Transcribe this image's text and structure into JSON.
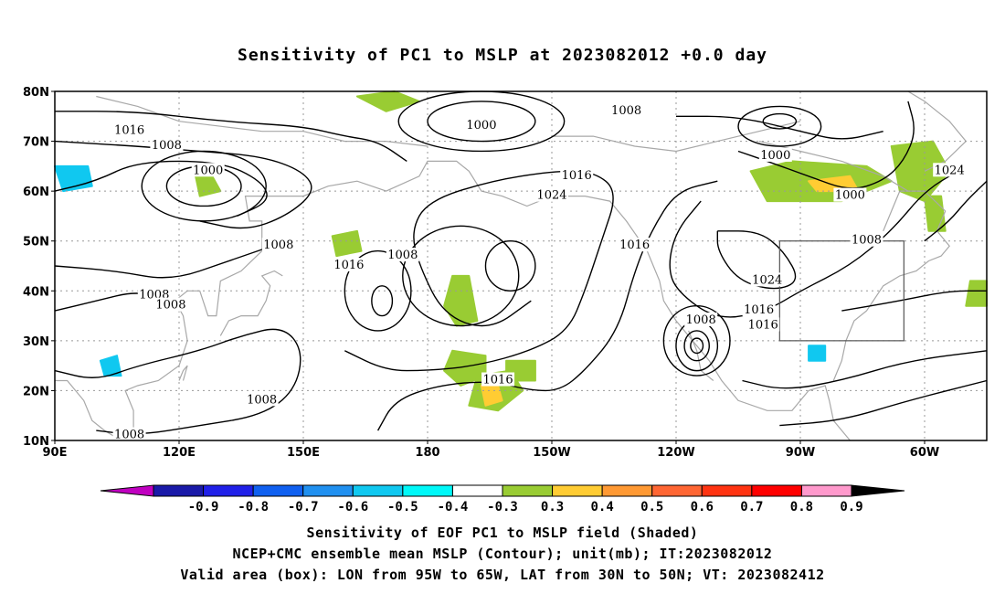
{
  "title": "Sensitivity of PC1 to MSLP at 2023082012 +0.0 day",
  "map": {
    "lat_labels": [
      "80N",
      "70N",
      "60N",
      "50N",
      "40N",
      "30N",
      "20N",
      "10N"
    ],
    "lon_labels": [
      "90E",
      "120E",
      "150E",
      "180",
      "150W",
      "120W",
      "90W",
      "60W"
    ],
    "contour_labels": [
      {
        "text": "1016",
        "lon": 108,
        "lat": 72
      },
      {
        "text": "1008",
        "lon": 117,
        "lat": 69
      },
      {
        "text": "1000",
        "lon": 127,
        "lat": 64
      },
      {
        "text": "1000",
        "lon": 193,
        "lat": 73
      },
      {
        "text": "1008",
        "lon": 228,
        "lat": 76
      },
      {
        "text": "1016",
        "lon": 216,
        "lat": 63
      },
      {
        "text": "1024",
        "lon": 210,
        "lat": 59
      },
      {
        "text": "1008",
        "lon": 144,
        "lat": 49
      },
      {
        "text": "1016",
        "lon": 161,
        "lat": 45
      },
      {
        "text": "1008",
        "lon": 174,
        "lat": 47
      },
      {
        "text": "1016",
        "lon": 230,
        "lat": 49
      },
      {
        "text": "1024",
        "lon": 262,
        "lat": 42
      },
      {
        "text": "1000",
        "lon": 264,
        "lat": 67
      },
      {
        "text": "1000",
        "lon": 282,
        "lat": 59
      },
      {
        "text": "1008",
        "lon": 286,
        "lat": 50
      },
      {
        "text": "1024",
        "lon": 306,
        "lat": 64
      },
      {
        "text": "1016",
        "lon": 260,
        "lat": 36
      },
      {
        "text": "1016",
        "lon": 261,
        "lat": 33
      },
      {
        "text": "1008",
        "lon": 246,
        "lat": 34
      },
      {
        "text": "1008",
        "lon": 114,
        "lat": 39
      },
      {
        "text": "1008",
        "lon": 118,
        "lat": 37
      },
      {
        "text": "1008",
        "lon": 140,
        "lat": 18
      },
      {
        "text": "1016",
        "lon": 197,
        "lat": 22
      },
      {
        "text": "1008",
        "lon": 108,
        "lat": 11
      }
    ],
    "valid_box": {
      "lon_min": 265,
      "lon_max": 295,
      "lat_min": 30,
      "lat_max": 50
    }
  },
  "colorbar": {
    "labels": [
      "-0.9",
      "-0.8",
      "-0.7",
      "-0.6",
      "-0.5",
      "-0.4",
      "-0.3",
      "0.3",
      "0.4",
      "0.5",
      "0.6",
      "0.7",
      "0.8",
      "0.9"
    ],
    "colors": [
      "#c000c0",
      "#1a1aa8",
      "#2020e8",
      "#1060f0",
      "#2090f0",
      "#10c8f0",
      "#00f8f8",
      "#ffffff",
      "#99cc33",
      "#ffcc33",
      "#ff9933",
      "#ff6633",
      "#ff3311",
      "#ff0000",
      "#ff99cc"
    ]
  },
  "captions": {
    "line1": "Sensitivity of EOF PC1 to MSLP field (Shaded)",
    "line2": "NCEP+CMC ensemble mean MSLP (Contour); unit(mb); IT:2023082012",
    "line3": "Valid area (box): LON from 95W to 65W, LAT from 30N to 50N; VT: 2023082412"
  }
}
